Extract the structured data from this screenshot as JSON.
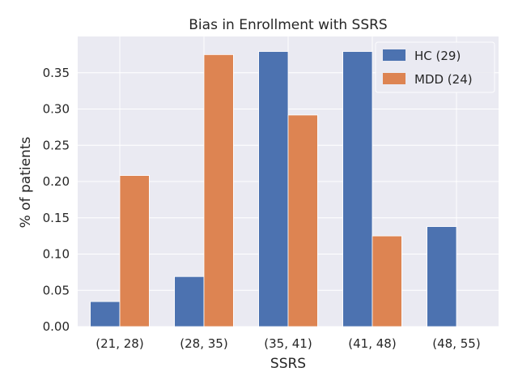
{
  "chart_data": {
    "type": "bar",
    "title": "Bias in Enrollment with SSRS",
    "xlabel": "SSRS",
    "ylabel": "% of patients",
    "categories": [
      "(21, 28)",
      "(28, 35)",
      "(35, 41)",
      "(41, 48)",
      "(48, 55)"
    ],
    "series": [
      {
        "name": "HC (29)",
        "color": "#4c72b0",
        "values": [
          0.0345,
          0.069,
          0.3793,
          0.3793,
          0.1379
        ]
      },
      {
        "name": "MDD (24)",
        "color": "#dd8452",
        "values": [
          0.2083,
          0.375,
          0.2917,
          0.125,
          0.0
        ]
      }
    ],
    "ylim": [
      0,
      0.4
    ],
    "yticks": [
      "0.00",
      "0.05",
      "0.10",
      "0.15",
      "0.20",
      "0.25",
      "0.30",
      "0.35"
    ],
    "grid": true,
    "legend_position": "top-right",
    "plot_background": "#eaeaf2"
  }
}
